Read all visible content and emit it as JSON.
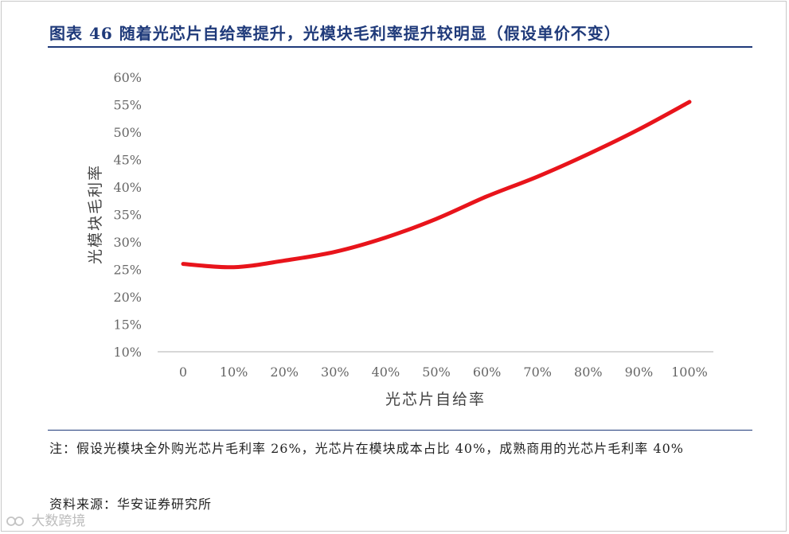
{
  "header": {
    "title": "图表 46 随着光芯片自给率提升，光模块毛利率提升较明显（假设单价不变）"
  },
  "chart_data": {
    "type": "line",
    "title": "",
    "xlabel": "光芯片自给率",
    "ylabel": "光模块毛利率",
    "categories": [
      "0",
      "10%",
      "20%",
      "30%",
      "40%",
      "50%",
      "60%",
      "70%",
      "80%",
      "90%",
      "100%"
    ],
    "yticks": [
      "10%",
      "15%",
      "20%",
      "25%",
      "30%",
      "35%",
      "40%",
      "45%",
      "50%",
      "55%",
      "60%"
    ],
    "ylim": [
      10,
      60
    ],
    "series": [
      {
        "values": [
          26.0,
          25.4,
          26.6,
          28.2,
          30.8,
          34.2,
          38.3,
          41.9,
          46.0,
          50.5,
          55.5
        ]
      }
    ],
    "line_color": "#e8141b",
    "grid": false,
    "legend": "none"
  },
  "footer": {
    "note": "注：假设光模块全外购光芯片毛利率 26%，光芯片在模块成本占比 40%，成熟商用的光芯片毛利率 40%",
    "source": "资料来源：华安证券研究所",
    "watermark": "大数跨境"
  },
  "colors": {
    "title": "#1f3a7a",
    "axis_text": "#666666",
    "axis_line": "#bfbfbf"
  }
}
